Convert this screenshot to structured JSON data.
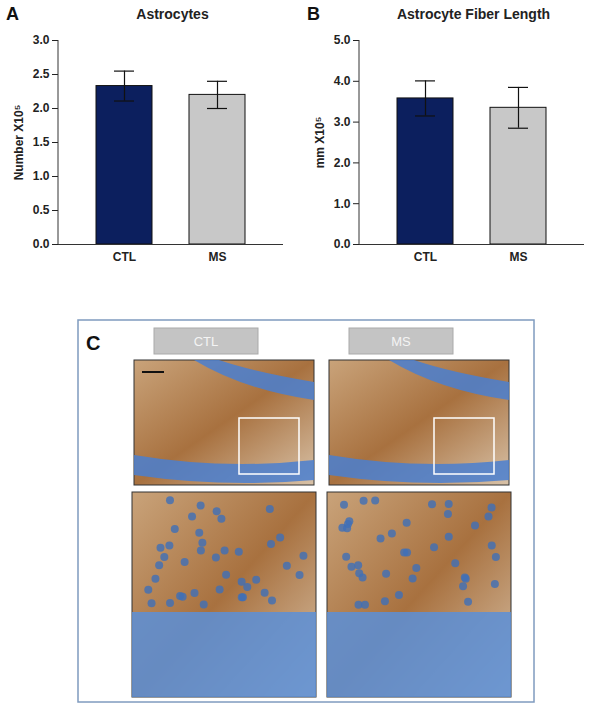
{
  "chart_data": [
    {
      "type": "bar",
      "title": "Astrocytes",
      "annotations": [
        "A"
      ],
      "y_label": "Number X10⁵",
      "categories": [
        "CTL",
        "MS"
      ],
      "values": [
        2.33,
        2.2
      ],
      "errors": [
        0.22,
        0.2
      ],
      "colors": [
        "#0c1f5e",
        "#c8c8c8"
      ],
      "ylim": [
        0,
        3
      ],
      "yticks": [
        {
          "value": 0,
          "label": "0.0"
        },
        0.5,
        {
          "value": 1,
          "label": "1.0"
        },
        1.5,
        {
          "value": 2,
          "label": "2.0"
        },
        2.5,
        {
          "value": 3,
          "label": "3.0"
        }
      ],
      "grid": false
    },
    {
      "type": "bar",
      "title": "Astrocyte Fiber Length",
      "annotations": [
        "B"
      ],
      "y_label": "mm X10⁵",
      "categories": [
        "CTL",
        "MS"
      ],
      "values": [
        3.58,
        3.35
      ],
      "errors": [
        0.43,
        0.5
      ],
      "colors": [
        "#0c1f5e",
        "#c8c8c8"
      ],
      "ylim": [
        0,
        5
      ],
      "yticks": [
        {
          "value": 0,
          "label": "0.0"
        },
        {
          "value": 1,
          "label": "1.0"
        },
        {
          "value": 2,
          "label": "2.0"
        },
        {
          "value": 3,
          "label": "3.0"
        },
        {
          "value": 4,
          "label": "4.0"
        },
        {
          "value": 5,
          "label": "5.0"
        }
      ],
      "grid": false
    }
  ],
  "panel_c": {
    "label": "C",
    "columns": [
      "CTL",
      "MS"
    ]
  }
}
